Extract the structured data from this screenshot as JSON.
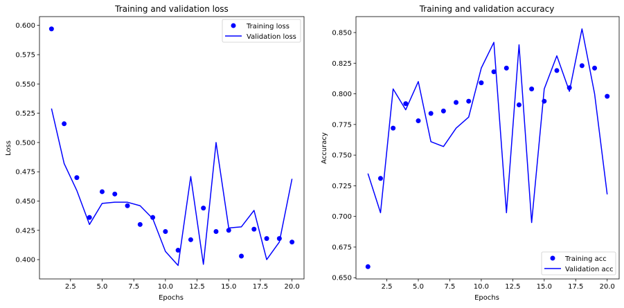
{
  "chart_data": [
    {
      "type": "line",
      "title": "Training and validation loss",
      "xlabel": "Epochs",
      "ylabel": "Loss",
      "xlim": [
        0.05,
        20.95
      ],
      "ylim": [
        0.3835,
        0.6075
      ],
      "xticks": [
        2.5,
        5.0,
        7.5,
        10.0,
        12.5,
        15.0,
        17.5,
        20.0
      ],
      "yticks": [
        0.4,
        0.425,
        0.45,
        0.475,
        0.5,
        0.525,
        0.55,
        0.575,
        0.6
      ],
      "grid": false,
      "legend": "top-right",
      "x": [
        1,
        2,
        3,
        4,
        5,
        6,
        7,
        8,
        9,
        10,
        11,
        12,
        13,
        14,
        15,
        16,
        17,
        18,
        19,
        20
      ],
      "series": [
        {
          "name": "Training loss",
          "style": "points",
          "color": "#0000ff",
          "values": [
            0.597,
            0.516,
            0.47,
            0.436,
            0.458,
            0.456,
            0.446,
            0.43,
            0.436,
            0.424,
            0.408,
            0.417,
            0.444,
            0.424,
            0.425,
            0.403,
            0.426,
            0.418,
            0.418,
            0.415
          ]
        },
        {
          "name": "Validation loss",
          "style": "line",
          "color": "#0000ff",
          "values": [
            0.529,
            0.482,
            0.459,
            0.43,
            0.448,
            0.449,
            0.449,
            0.446,
            0.435,
            0.407,
            0.395,
            0.471,
            0.396,
            0.5,
            0.427,
            0.428,
            0.442,
            0.4,
            0.415,
            0.469
          ]
        }
      ]
    },
    {
      "type": "line",
      "title": "Training and validation accuracy",
      "xlabel": "Epochs",
      "ylabel": "Accuracy",
      "xlim": [
        0.05,
        20.95
      ],
      "ylim": [
        0.649,
        0.863
      ],
      "xticks": [
        2.5,
        5.0,
        7.5,
        10.0,
        12.5,
        15.0,
        17.5,
        20.0
      ],
      "yticks": [
        0.65,
        0.675,
        0.7,
        0.725,
        0.75,
        0.775,
        0.8,
        0.825,
        0.85
      ],
      "grid": false,
      "legend": "bottom-right",
      "x": [
        1,
        2,
        3,
        4,
        5,
        6,
        7,
        8,
        9,
        10,
        11,
        12,
        13,
        14,
        15,
        16,
        17,
        18,
        19,
        20
      ],
      "series": [
        {
          "name": "Training acc",
          "style": "points",
          "color": "#0000ff",
          "values": [
            0.659,
            0.731,
            0.772,
            0.792,
            0.778,
            0.784,
            0.786,
            0.793,
            0.794,
            0.809,
            0.818,
            0.821,
            0.791,
            0.804,
            0.794,
            0.819,
            0.805,
            0.823,
            0.821,
            0.798
          ]
        },
        {
          "name": "Validation acc",
          "style": "line",
          "color": "#0000ff",
          "values": [
            0.735,
            0.703,
            0.804,
            0.787,
            0.81,
            0.761,
            0.757,
            0.772,
            0.781,
            0.821,
            0.842,
            0.703,
            0.84,
            0.695,
            0.804,
            0.831,
            0.802,
            0.853,
            0.8,
            0.718
          ]
        }
      ]
    }
  ]
}
